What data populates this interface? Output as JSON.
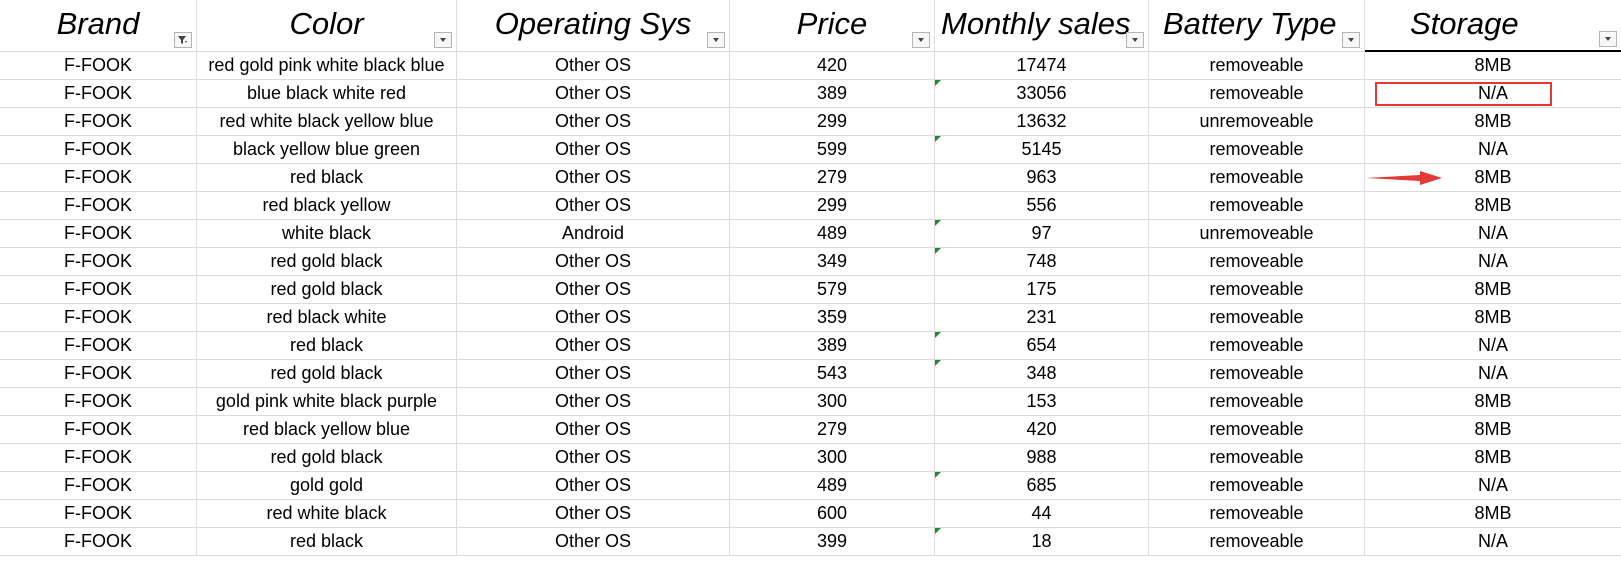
{
  "columns": [
    "Brand",
    "Color",
    "Operating Sys",
    "Price",
    "Monthly sales",
    "Battery Type",
    "Storage"
  ],
  "filter_active_column": "Brand",
  "rows": [
    {
      "brand": "F-FOOK",
      "color": "red gold pink white black blue",
      "os": "Other OS",
      "price": "420",
      "sales": "17474",
      "battery": "removeable",
      "storage": "8MB",
      "sales_marker": false
    },
    {
      "brand": "F-FOOK",
      "color": "blue black white red",
      "os": "Other OS",
      "price": "389",
      "sales": "33056",
      "battery": "removeable",
      "storage": "N/A",
      "sales_marker": true
    },
    {
      "brand": "F-FOOK",
      "color": "red white black yellow blue",
      "os": "Other OS",
      "price": "299",
      "sales": "13632",
      "battery": "unremoveable",
      "storage": "8MB",
      "sales_marker": false
    },
    {
      "brand": "F-FOOK",
      "color": "black yellow blue green",
      "os": "Other OS",
      "price": "599",
      "sales": "5145",
      "battery": "removeable",
      "storage": "N/A",
      "sales_marker": true
    },
    {
      "brand": "F-FOOK",
      "color": "red black",
      "os": "Other OS",
      "price": "279",
      "sales": "963",
      "battery": "removeable",
      "storage": "8MB",
      "sales_marker": false
    },
    {
      "brand": "F-FOOK",
      "color": "red black yellow",
      "os": "Other OS",
      "price": "299",
      "sales": "556",
      "battery": "removeable",
      "storage": "8MB",
      "sales_marker": false
    },
    {
      "brand": "F-FOOK",
      "color": "white black",
      "os": "Android",
      "price": "489",
      "sales": "97",
      "battery": "unremoveable",
      "storage": "N/A",
      "sales_marker": true
    },
    {
      "brand": "F-FOOK",
      "color": "red gold black",
      "os": "Other OS",
      "price": "349",
      "sales": "748",
      "battery": "removeable",
      "storage": "N/A",
      "sales_marker": true
    },
    {
      "brand": "F-FOOK",
      "color": "red gold black",
      "os": "Other OS",
      "price": "579",
      "sales": "175",
      "battery": "removeable",
      "storage": "8MB",
      "sales_marker": false
    },
    {
      "brand": "F-FOOK",
      "color": "red black white",
      "os": "Other OS",
      "price": "359",
      "sales": "231",
      "battery": "removeable",
      "storage": "8MB",
      "sales_marker": false
    },
    {
      "brand": "F-FOOK",
      "color": "red black",
      "os": "Other OS",
      "price": "389",
      "sales": "654",
      "battery": "removeable",
      "storage": "N/A",
      "sales_marker": true
    },
    {
      "brand": "F-FOOK",
      "color": "red gold black",
      "os": "Other OS",
      "price": "543",
      "sales": "348",
      "battery": "removeable",
      "storage": "N/A",
      "sales_marker": true
    },
    {
      "brand": "F-FOOK",
      "color": "gold pink white black purple",
      "os": "Other OS",
      "price": "300",
      "sales": "153",
      "battery": "removeable",
      "storage": "8MB",
      "sales_marker": false
    },
    {
      "brand": "F-FOOK",
      "color": "red black yellow blue",
      "os": "Other OS",
      "price": "279",
      "sales": "420",
      "battery": "removeable",
      "storage": "8MB",
      "sales_marker": false
    },
    {
      "brand": "F-FOOK",
      "color": "red gold black",
      "os": "Other OS",
      "price": "300",
      "sales": "988",
      "battery": "removeable",
      "storage": "8MB",
      "sales_marker": false
    },
    {
      "brand": "F-FOOK",
      "color": "gold gold",
      "os": "Other OS",
      "price": "489",
      "sales": "685",
      "battery": "removeable",
      "storage": "N/A",
      "sales_marker": true
    },
    {
      "brand": "F-FOOK",
      "color": "red white black",
      "os": "Other OS",
      "price": "600",
      "sales": "44",
      "battery": "removeable",
      "storage": "8MB",
      "sales_marker": false
    },
    {
      "brand": "F-FOOK",
      "color": "red black",
      "os": "Other OS",
      "price": "399",
      "sales": "18",
      "battery": "removeable",
      "storage": "N/A",
      "sales_marker": true
    }
  ],
  "annotations": {
    "highlight_box_color": "#e53935",
    "highlight_row_index": 1,
    "arrow_color": "#e53935",
    "arrow_row_index": 4
  },
  "colors": {
    "grid": "#dcdcdc",
    "marker": "#1a8a2c"
  }
}
